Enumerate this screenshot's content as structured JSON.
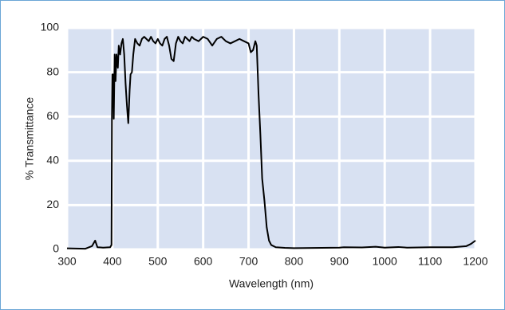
{
  "chart_data": {
    "type": "line",
    "x_label": "Wavelength (nm)",
    "y_label": "% Transmittance",
    "series": [
      {
        "name": "Transmittance",
        "color": "#000000",
        "x": [
          300,
          340,
          355,
          362,
          367,
          380,
          395,
          398,
          399,
          400,
          402,
          403,
          405,
          407,
          409,
          412,
          414,
          417,
          420,
          423,
          426,
          429,
          432,
          435,
          438,
          440,
          443,
          446,
          450,
          455,
          460,
          465,
          470,
          475,
          480,
          485,
          490,
          495,
          500,
          505,
          510,
          515,
          520,
          525,
          530,
          535,
          540,
          545,
          550,
          555,
          560,
          565,
          570,
          575,
          580,
          590,
          600,
          610,
          620,
          630,
          640,
          650,
          660,
          670,
          680,
          690,
          700,
          705,
          710,
          715,
          718,
          722,
          726,
          730,
          735,
          740,
          745,
          750,
          760,
          780,
          800,
          900,
          910,
          950,
          980,
          1000,
          1030,
          1050,
          1100,
          1150,
          1180,
          1190,
          1200
        ],
        "values": [
          0.5,
          0.3,
          1.5,
          4,
          1,
          0.8,
          1,
          2,
          60,
          79,
          79,
          59,
          88,
          76,
          88,
          82,
          92,
          88,
          93,
          95,
          88,
          75,
          65,
          57,
          72,
          79,
          80,
          88,
          95,
          93,
          92,
          95,
          96,
          95,
          94,
          96,
          94,
          93,
          95,
          93,
          92,
          95,
          96,
          92,
          86,
          85,
          93,
          96,
          94,
          93,
          96,
          95,
          94,
          96,
          95,
          94,
          96,
          95,
          92,
          95,
          96,
          94,
          93,
          94,
          95,
          94,
          93,
          89,
          90,
          94,
          92,
          70,
          52,
          32,
          22,
          10,
          4,
          2,
          1,
          0.7,
          0.6,
          0.8,
          1,
          0.9,
          1.2,
          0.8,
          1.1,
          0.8,
          1,
          1,
          1.5,
          2.5,
          4
        ]
      }
    ],
    "xlim": [
      300,
      1200
    ],
    "xticks": [
      300,
      400,
      500,
      600,
      700,
      800,
      900,
      1000,
      1100,
      1200
    ],
    "ylim": [
      0,
      100
    ],
    "yticks": [
      0,
      20,
      40,
      60,
      80,
      100
    ],
    "grid": true,
    "plot_background": "#d8e1f2"
  }
}
